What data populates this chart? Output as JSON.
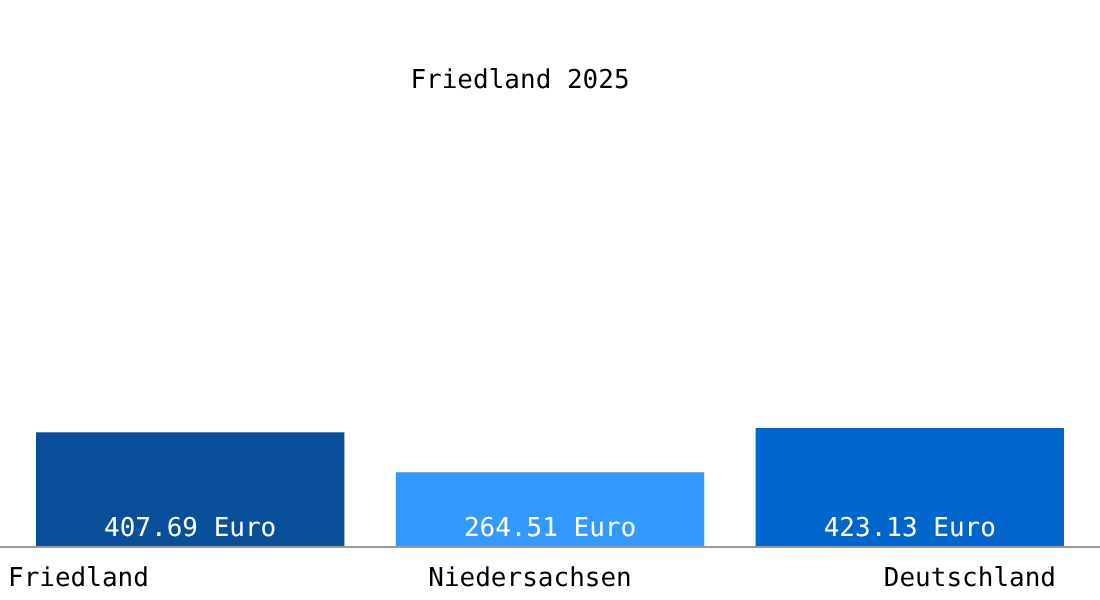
{
  "chart_data": {
    "type": "bar",
    "title": "Friedland 2025",
    "categories": [
      "Friedland",
      "Niedersachsen",
      "Deutschland"
    ],
    "values": [
      407.69,
      264.51,
      423.13
    ],
    "colors": [
      "#0a4f9a",
      "#3399ff",
      "#0066cc"
    ],
    "value_labels": [
      "407.69 Euro",
      "264.51 Euro",
      "423.13 Euro"
    ]
  }
}
